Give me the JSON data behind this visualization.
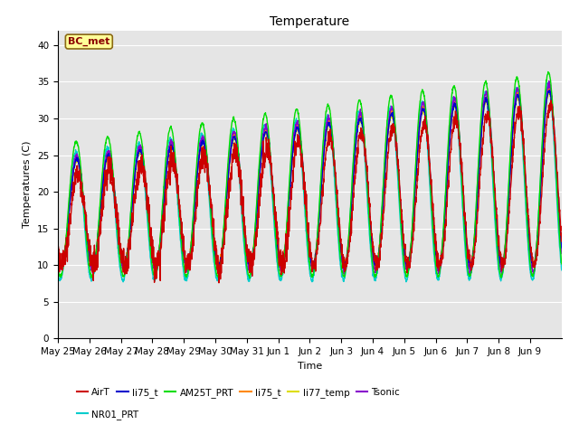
{
  "title": "Temperature",
  "xlabel": "Time",
  "ylabel": "Temperatures (C)",
  "ylim": [
    0,
    42
  ],
  "yticks": [
    0,
    5,
    10,
    15,
    20,
    25,
    30,
    35,
    40
  ],
  "annotation": "BC_met",
  "background_color": "#e5e5e5",
  "figsize": [
    6.4,
    4.8
  ],
  "dpi": 100,
  "series_colors": {
    "AirT": "#cc0000",
    "li75_t_b": "#0000cc",
    "AM25T_PRT": "#00dd00",
    "li75_t_o": "#ff8800",
    "li77_temp": "#dddd00",
    "Tsonic": "#8800cc",
    "NR01_PRT": "#00cccc"
  },
  "legend_entries": [
    {
      "label": "AirT",
      "color": "#cc0000"
    },
    {
      "label": "li75_t",
      "color": "#0000cc"
    },
    {
      "label": "AM25T_PRT",
      "color": "#00dd00"
    },
    {
      "label": "li75_t",
      "color": "#ff8800"
    },
    {
      "label": "li77_temp",
      "color": "#dddd00"
    },
    {
      "label": "Tsonic",
      "color": "#8800cc"
    },
    {
      "label": "NR01_PRT",
      "color": "#00cccc"
    }
  ],
  "xtick_labels": [
    "May 25",
    "May 26",
    "May 27",
    "May 28",
    "May 29",
    "May 30",
    "May 31",
    "Jun 1",
    "Jun 2",
    "Jun 3",
    "Jun 4",
    "Jun 5",
    "Jun 6",
    "Jun 7",
    "Jun 8",
    "Jun 9"
  ],
  "n_days": 16
}
